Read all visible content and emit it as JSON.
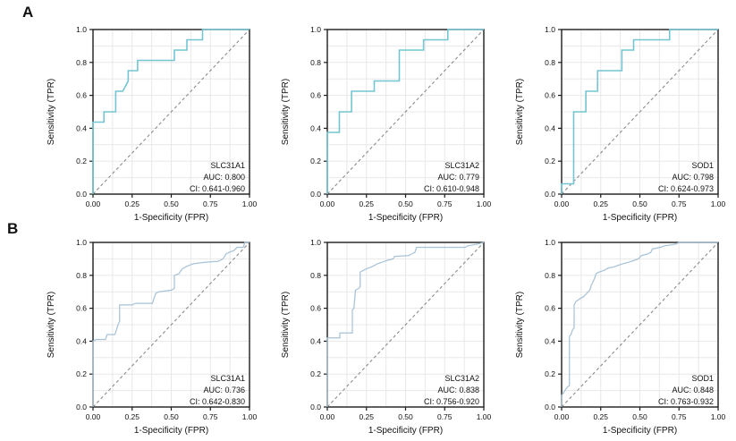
{
  "figure": {
    "panel_labels": {
      "a": "A",
      "b": "B"
    }
  },
  "colors": {
    "background": "#ffffff",
    "curve_row_a": "#74c5d1",
    "curve_row_b": "#a9c3d6",
    "grid": "#e8e8e8",
    "spine": "#1c1c1c",
    "diagonal": "#8c8c8c",
    "text": "#111111"
  },
  "axes": {
    "x_label": "1-Specificity (FPR)",
    "y_label": "Sensitivity (TPR)",
    "x_tick_labels": [
      "0.00",
      "0.25",
      "0.50",
      "0.75",
      "1.00"
    ],
    "x_tick_values": [
      0,
      0.25,
      0.5,
      0.75,
      1
    ],
    "y_tick_labels": [
      "0.0",
      "0.2",
      "0.4",
      "0.6",
      "0.8",
      "1.0"
    ],
    "y_tick_values": [
      0,
      0.2,
      0.4,
      0.6,
      0.8,
      1
    ],
    "xlim": [
      0,
      1
    ],
    "ylim": [
      0,
      1
    ],
    "minor_x_step": 0.125,
    "minor_y_step": 0.1,
    "grid": true
  },
  "chart_data": [
    {
      "id": "roc-a-slc31a1",
      "type": "line",
      "row": "A",
      "gene": "SLC31A1",
      "auc": 0.8,
      "ci": [
        0.641,
        0.96
      ],
      "auc_label": "AUC: 0.800",
      "ci_label": "CI: 0.641-0.960",
      "xlabel": "1-Specificity (FPR)",
      "ylabel": "Sensitivity (TPR)",
      "points": [
        [
          0,
          0
        ],
        [
          0,
          0.4375
        ],
        [
          0.07,
          0.4375
        ],
        [
          0.07,
          0.5
        ],
        [
          0.145,
          0.5
        ],
        [
          0.145,
          0.625
        ],
        [
          0.19,
          0.625
        ],
        [
          0.225,
          0.6875
        ],
        [
          0.225,
          0.75
        ],
        [
          0.285,
          0.75
        ],
        [
          0.285,
          0.8125
        ],
        [
          0.52,
          0.8125
        ],
        [
          0.52,
          0.875
        ],
        [
          0.6,
          0.875
        ],
        [
          0.6,
          0.9375
        ],
        [
          0.7,
          0.9375
        ],
        [
          0.7,
          1
        ],
        [
          1,
          1
        ]
      ]
    },
    {
      "id": "roc-a-slc31a2",
      "type": "line",
      "row": "A",
      "gene": "SLC31A2",
      "auc": 0.779,
      "ci": [
        0.61,
        0.948
      ],
      "auc_label": "AUC: 0.779",
      "ci_label": "CI: 0.610-0.948",
      "xlabel": "1-Specificity (FPR)",
      "ylabel": "Sensitivity (TPR)",
      "points": [
        [
          0,
          0
        ],
        [
          0,
          0.375
        ],
        [
          0.077,
          0.375
        ],
        [
          0.077,
          0.5
        ],
        [
          0.155,
          0.5
        ],
        [
          0.155,
          0.625
        ],
        [
          0.3,
          0.625
        ],
        [
          0.3,
          0.6875
        ],
        [
          0.46,
          0.6875
        ],
        [
          0.46,
          0.875
        ],
        [
          0.615,
          0.875
        ],
        [
          0.615,
          0.9375
        ],
        [
          0.77,
          0.9375
        ],
        [
          0.77,
          1
        ],
        [
          1,
          1
        ]
      ]
    },
    {
      "id": "roc-a-sod1",
      "type": "line",
      "row": "A",
      "gene": "SOD1",
      "auc": 0.798,
      "ci": [
        0.624,
        0.973
      ],
      "auc_label": "AUC: 0.798",
      "ci_label": "CI: 0.624-0.973",
      "xlabel": "1-Specificity (FPR)",
      "ylabel": "Sensitivity (TPR)",
      "points": [
        [
          0,
          0
        ],
        [
          0,
          0.0625
        ],
        [
          0.077,
          0.0625
        ],
        [
          0.077,
          0.5
        ],
        [
          0.155,
          0.5
        ],
        [
          0.155,
          0.625
        ],
        [
          0.23,
          0.625
        ],
        [
          0.23,
          0.75
        ],
        [
          0.385,
          0.75
        ],
        [
          0.385,
          0.875
        ],
        [
          0.46,
          0.875
        ],
        [
          0.46,
          0.9375
        ],
        [
          0.69,
          0.9375
        ],
        [
          0.69,
          1
        ],
        [
          1,
          1
        ]
      ]
    },
    {
      "id": "roc-b-slc31a1",
      "type": "line",
      "row": "B",
      "gene": "SLC31A1",
      "auc": 0.736,
      "ci": [
        0.642,
        0.83
      ],
      "auc_label": "AUC: 0.736",
      "ci_label": "CI: 0.642-0.830",
      "xlabel": "1-Specificity (FPR)",
      "ylabel": "Sensitivity (TPR)",
      "points": [
        [
          0,
          0
        ],
        [
          0,
          0.4
        ],
        [
          0.02,
          0.41
        ],
        [
          0.08,
          0.41
        ],
        [
          0.09,
          0.44
        ],
        [
          0.14,
          0.44
        ],
        [
          0.16,
          0.5
        ],
        [
          0.17,
          0.52
        ],
        [
          0.17,
          0.62
        ],
        [
          0.25,
          0.62
        ],
        [
          0.27,
          0.63
        ],
        [
          0.38,
          0.63
        ],
        [
          0.4,
          0.69
        ],
        [
          0.42,
          0.7
        ],
        [
          0.5,
          0.71
        ],
        [
          0.52,
          0.72
        ],
        [
          0.52,
          0.8
        ],
        [
          0.55,
          0.81
        ],
        [
          0.57,
          0.84
        ],
        [
          0.6,
          0.855
        ],
        [
          0.64,
          0.87
        ],
        [
          0.72,
          0.88
        ],
        [
          0.8,
          0.885
        ],
        [
          0.83,
          0.9
        ],
        [
          0.85,
          0.93
        ],
        [
          0.87,
          0.94
        ],
        [
          0.9,
          0.95
        ],
        [
          0.92,
          0.97
        ],
        [
          0.96,
          0.97
        ],
        [
          0.97,
          1
        ],
        [
          1,
          1
        ]
      ]
    },
    {
      "id": "roc-b-slc31a2",
      "type": "line",
      "row": "B",
      "gene": "SLC31A2",
      "auc": 0.838,
      "ci": [
        0.756,
        0.92
      ],
      "auc_label": "AUC: 0.838",
      "ci_label": "CI: 0.756-0.920",
      "xlabel": "1-Specificity (FPR)",
      "ylabel": "Sensitivity (TPR)",
      "points": [
        [
          0,
          0
        ],
        [
          0,
          0.42
        ],
        [
          0.08,
          0.42
        ],
        [
          0.08,
          0.45
        ],
        [
          0.16,
          0.45
        ],
        [
          0.16,
          0.59
        ],
        [
          0.17,
          0.6
        ],
        [
          0.18,
          0.71
        ],
        [
          0.2,
          0.72
        ],
        [
          0.21,
          0.73
        ],
        [
          0.21,
          0.82
        ],
        [
          0.23,
          0.83
        ],
        [
          0.25,
          0.84
        ],
        [
          0.28,
          0.85
        ],
        [
          0.3,
          0.86
        ],
        [
          0.32,
          0.87
        ],
        [
          0.35,
          0.88
        ],
        [
          0.38,
          0.89
        ],
        [
          0.42,
          0.9
        ],
        [
          0.43,
          0.915
        ],
        [
          0.52,
          0.92
        ],
        [
          0.54,
          0.93
        ],
        [
          0.56,
          0.94
        ],
        [
          0.57,
          0.97
        ],
        [
          0.88,
          0.97
        ],
        [
          0.9,
          0.98
        ],
        [
          0.96,
          0.99
        ],
        [
          1,
          1
        ]
      ]
    },
    {
      "id": "roc-b-sod1",
      "type": "line",
      "row": "B",
      "gene": "SOD1",
      "auc": 0.848,
      "ci": [
        0.763,
        0.932
      ],
      "auc_label": "AUC: 0.848",
      "ci_label": "CI: 0.763-0.932",
      "xlabel": "1-Specificity (FPR)",
      "ylabel": "Sensitivity (TPR)",
      "points": [
        [
          0,
          0
        ],
        [
          0,
          0.07
        ],
        [
          0.035,
          0.12
        ],
        [
          0.05,
          0.13
        ],
        [
          0.05,
          0.43
        ],
        [
          0.06,
          0.44
        ],
        [
          0.07,
          0.47
        ],
        [
          0.08,
          0.48
        ],
        [
          0.08,
          0.62
        ],
        [
          0.09,
          0.64
        ],
        [
          0.12,
          0.66
        ],
        [
          0.14,
          0.67
        ],
        [
          0.16,
          0.69
        ],
        [
          0.18,
          0.71
        ],
        [
          0.19,
          0.74
        ],
        [
          0.21,
          0.78
        ],
        [
          0.22,
          0.81
        ],
        [
          0.24,
          0.82
        ],
        [
          0.27,
          0.83
        ],
        [
          0.3,
          0.845
        ],
        [
          0.33,
          0.85
        ],
        [
          0.36,
          0.86
        ],
        [
          0.39,
          0.87
        ],
        [
          0.43,
          0.88
        ],
        [
          0.46,
          0.89
        ],
        [
          0.49,
          0.9
        ],
        [
          0.51,
          0.92
        ],
        [
          0.55,
          0.93
        ],
        [
          0.57,
          0.94
        ],
        [
          0.58,
          0.96
        ],
        [
          0.63,
          0.97
        ],
        [
          0.66,
          0.98
        ],
        [
          0.7,
          0.985
        ],
        [
          0.73,
          0.99
        ],
        [
          0.75,
          1
        ],
        [
          1,
          1
        ]
      ]
    }
  ]
}
